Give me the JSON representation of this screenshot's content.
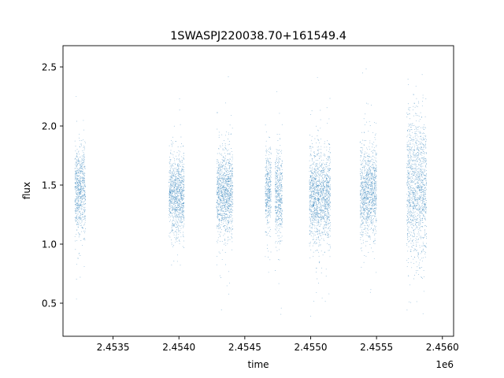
{
  "chart_data": {
    "type": "scatter",
    "title": "1SWASPJ220038.70+161549.4",
    "xlabel": "time",
    "ylabel": "flux",
    "x_offset_label": "1e6",
    "x_ticks": [
      2.4535,
      2.454,
      2.4545,
      2.455,
      2.4555,
      2.456
    ],
    "x_tick_labels": [
      "2.4535",
      "2.4540",
      "2.4545",
      "2.4550",
      "2.4555",
      "2.4560"
    ],
    "y_ticks": [
      0.5,
      1.0,
      1.5,
      2.0,
      2.5
    ],
    "y_tick_labels": [
      "0.5",
      "1.0",
      "1.5",
      "2.0",
      "2.5"
    ],
    "xlim": [
      2453120,
      2456085
    ],
    "ylim": [
      0.22,
      2.68
    ],
    "grid": false,
    "legend": "none",
    "marker_color": "#1f77b4",
    "series": [
      {
        "observing_seasons": [
          {
            "x_start": 2453210,
            "x_end": 2453290,
            "flux_center": 1.46,
            "flux_spread": 0.18,
            "flux_min": 0.34,
            "flux_max": 2.5
          },
          {
            "x_start": 2453925,
            "x_end": 2454040,
            "flux_center": 1.41,
            "flux_spread": 0.17,
            "flux_min": 0.48,
            "flux_max": 2.47
          },
          {
            "x_start": 2454285,
            "x_end": 2454410,
            "flux_center": 1.43,
            "flux_spread": 0.18,
            "flux_min": 0.42,
            "flux_max": 2.43
          },
          {
            "x_start": 2454655,
            "x_end": 2454700,
            "flux_center": 1.44,
            "flux_spread": 0.16,
            "flux_min": 0.38,
            "flux_max": 2.18
          },
          {
            "x_start": 2454730,
            "x_end": 2454785,
            "flux_center": 1.42,
            "flux_spread": 0.2,
            "flux_min": 0.33,
            "flux_max": 2.32
          },
          {
            "x_start": 2454990,
            "x_end": 2455150,
            "flux_center": 1.41,
            "flux_spread": 0.19,
            "flux_min": 0.34,
            "flux_max": 2.55
          },
          {
            "x_start": 2455375,
            "x_end": 2455500,
            "flux_center": 1.43,
            "flux_spread": 0.19,
            "flux_min": 0.37,
            "flux_max": 2.54
          },
          {
            "x_start": 2455730,
            "x_end": 2455880,
            "flux_center": 1.48,
            "flux_spread": 0.3,
            "flux_min": 0.32,
            "flux_max": 2.57
          }
        ]
      }
    ]
  }
}
